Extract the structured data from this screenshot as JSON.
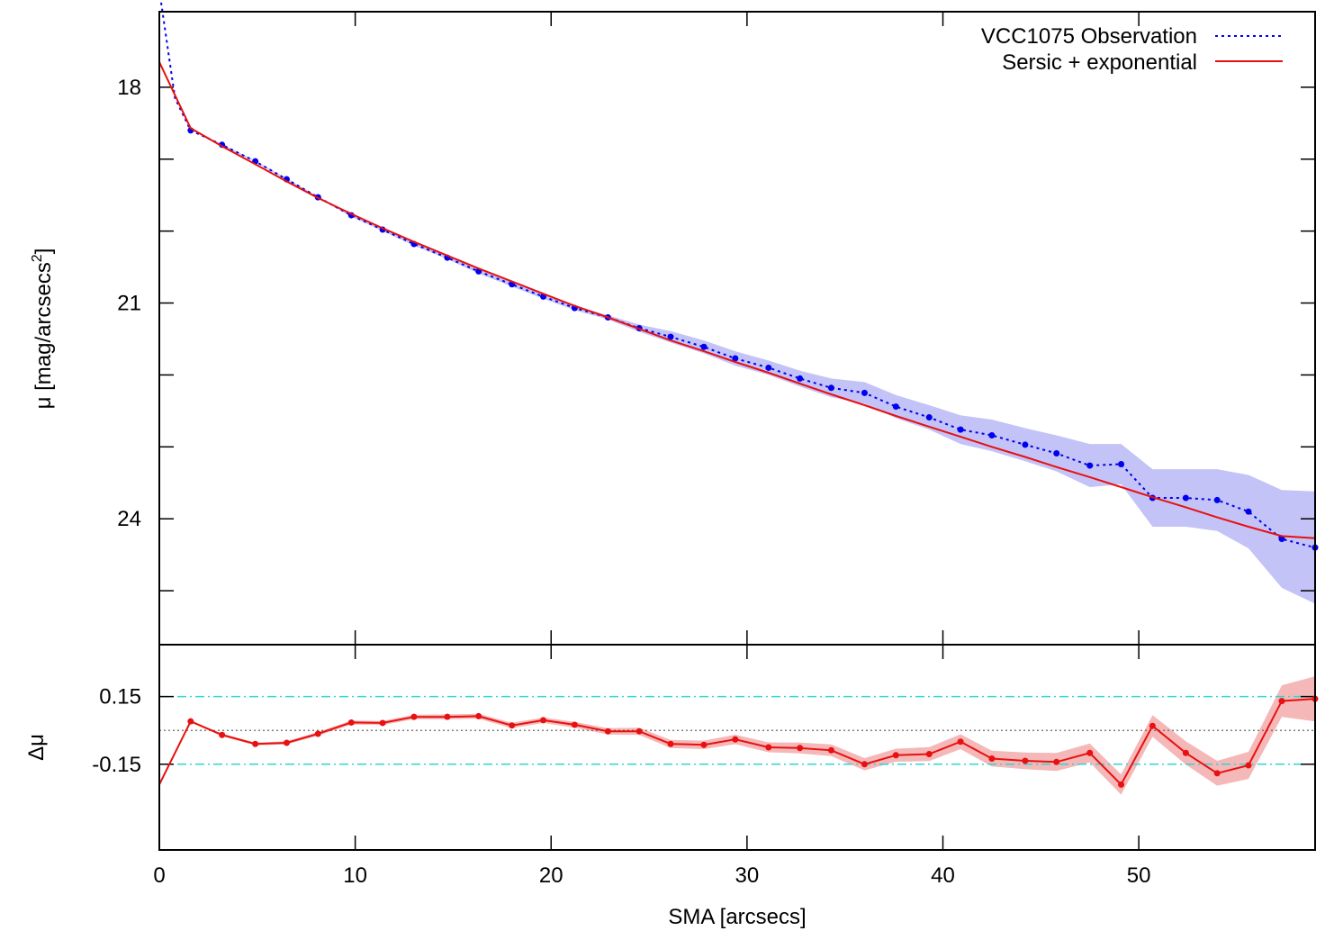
{
  "chart_data": [
    {
      "type": "line",
      "ylabel": "μ [mag/arcsecs²]",
      "ylabel_base": "μ [mag/arcsecs",
      "ylabel_sup": "2",
      "ylabel_close": "]",
      "xlim": [
        0,
        59
      ],
      "ylim": [
        25.75,
        16.95
      ],
      "y_reversed": true,
      "yticks": [
        18,
        21,
        24
      ],
      "ytick_labels": [
        "18",
        "21",
        "24"
      ],
      "legend": {
        "placement": "top-right",
        "entries": [
          "VCC1075 Observation",
          "Sersic + exponential"
        ]
      },
      "colors": {
        "observation": "#0000ee",
        "observation_band": "#c3c3f7",
        "model": "#e81010"
      },
      "series": [
        {
          "name": "VCC1075 Observation",
          "style": "dotted",
          "x": [
            0,
            0.8,
            1.6,
            3.2,
            4.9,
            6.5,
            8.1,
            9.8,
            11.4,
            13.0,
            14.7,
            16.3,
            18.0,
            19.6,
            21.2,
            22.9,
            24.5,
            26.1,
            27.8,
            29.4,
            31.1,
            32.7,
            34.3,
            36.0,
            37.6,
            39.3,
            40.9,
            42.5,
            44.2,
            45.8,
            47.5,
            49.1,
            50.7,
            52.4,
            54.0,
            55.6,
            57.3,
            59.0
          ],
          "y": [
            16.65,
            18.15,
            18.6,
            18.8,
            19.03,
            19.28,
            19.53,
            19.78,
            19.98,
            20.18,
            20.37,
            20.56,
            20.74,
            20.91,
            21.07,
            21.2,
            21.35,
            21.47,
            21.61,
            21.77,
            21.9,
            22.05,
            22.18,
            22.25,
            22.44,
            22.59,
            22.76,
            22.84,
            22.97,
            23.09,
            23.26,
            23.24,
            23.71,
            23.71,
            23.74,
            23.9,
            24.28,
            24.4
          ],
          "band_lower": [
            16.65,
            18.15,
            18.6,
            18.79,
            19.02,
            19.27,
            19.52,
            19.76,
            19.96,
            20.16,
            20.35,
            20.53,
            20.71,
            20.88,
            21.04,
            21.17,
            21.3,
            21.39,
            21.52,
            21.67,
            21.8,
            21.94,
            22.05,
            22.1,
            22.28,
            22.42,
            22.56,
            22.62,
            22.74,
            22.84,
            22.96,
            22.96,
            23.31,
            23.31,
            23.31,
            23.39,
            23.6,
            23.62
          ],
          "band_upper": [
            16.65,
            18.15,
            18.6,
            18.81,
            19.04,
            19.29,
            19.54,
            19.8,
            20.0,
            20.2,
            20.39,
            20.59,
            20.77,
            20.94,
            21.1,
            21.23,
            21.4,
            21.55,
            21.7,
            21.87,
            22.0,
            22.16,
            22.31,
            22.4,
            22.6,
            22.76,
            22.96,
            23.06,
            23.2,
            23.34,
            23.56,
            23.52,
            24.11,
            24.11,
            24.17,
            24.41,
            24.96,
            25.18
          ],
          "markers_from_index": 2
        },
        {
          "name": "Sersic + exponential",
          "style": "solid",
          "x": [
            0,
            1.6,
            3.2,
            4.9,
            6.5,
            8.1,
            9.8,
            11.4,
            13.0,
            14.7,
            16.3,
            18.0,
            19.6,
            21.2,
            22.9,
            24.5,
            26.1,
            27.8,
            29.4,
            31.1,
            32.7,
            34.3,
            36.0,
            37.6,
            39.3,
            40.9,
            42.5,
            44.2,
            45.8,
            47.5,
            49.1,
            50.7,
            52.4,
            54.0,
            55.6,
            57.3,
            59.0
          ],
          "y": [
            17.65,
            18.57,
            18.82,
            19.07,
            19.31,
            19.54,
            19.76,
            19.96,
            20.15,
            20.34,
            20.52,
            20.7,
            20.87,
            21.04,
            21.2,
            21.36,
            21.52,
            21.67,
            21.82,
            21.97,
            22.12,
            22.27,
            22.42,
            22.57,
            22.72,
            22.86,
            23.0,
            23.14,
            23.28,
            23.42,
            23.56,
            23.7,
            23.84,
            23.98,
            24.11,
            24.24,
            24.27
          ]
        }
      ]
    },
    {
      "type": "line",
      "xlabel": "SMA [arcsecs]",
      "ylabel": "Δμ",
      "xlim": [
        0,
        59
      ],
      "ylim": [
        -0.53,
        0.38
      ],
      "xticks": [
        0,
        10,
        20,
        30,
        40,
        50
      ],
      "xtick_labels": [
        "0",
        "10",
        "20",
        "30",
        "40",
        "50"
      ],
      "yticks": [
        0.15,
        -0.15
      ],
      "ytick_labels": [
        "0.15",
        "-0.15"
      ],
      "reference_lines": [
        0.15,
        0.0,
        -0.15
      ],
      "colors": {
        "residual": "#e81010",
        "band": "#f5b8b8",
        "threshold": "#2ed6d6",
        "zero": "#555555"
      },
      "series": [
        {
          "name": "Δμ",
          "x": [
            0,
            1.6,
            3.2,
            4.9,
            6.5,
            8.1,
            9.8,
            11.4,
            13.0,
            14.7,
            16.3,
            18.0,
            19.6,
            21.2,
            22.9,
            24.5,
            26.1,
            27.8,
            29.4,
            31.1,
            32.7,
            34.3,
            36.0,
            37.6,
            39.3,
            40.9,
            42.5,
            44.2,
            45.8,
            47.5,
            49.1,
            50.7,
            52.4,
            54.0,
            55.6,
            57.3,
            59.0
          ],
          "y": [
            -0.24,
            0.04,
            -0.02,
            -0.06,
            -0.055,
            -0.015,
            0.035,
            0.033,
            0.06,
            0.06,
            0.063,
            0.022,
            0.045,
            0.025,
            -0.004,
            -0.004,
            -0.06,
            -0.064,
            -0.04,
            -0.075,
            -0.078,
            -0.088,
            -0.15,
            -0.11,
            -0.105,
            -0.05,
            -0.125,
            -0.135,
            -0.14,
            -0.1,
            -0.24,
            0.02,
            -0.1,
            -0.19,
            -0.155,
            0.13,
            0.14
          ],
          "band_half_width": [
            0,
            0.004,
            0.006,
            0.006,
            0.007,
            0.008,
            0.009,
            0.009,
            0.01,
            0.011,
            0.011,
            0.012,
            0.012,
            0.013,
            0.014,
            0.016,
            0.018,
            0.019,
            0.021,
            0.022,
            0.024,
            0.026,
            0.027,
            0.029,
            0.031,
            0.033,
            0.035,
            0.037,
            0.04,
            0.042,
            0.045,
            0.048,
            0.052,
            0.055,
            0.06,
            0.07,
            0.1
          ]
        }
      ]
    }
  ]
}
